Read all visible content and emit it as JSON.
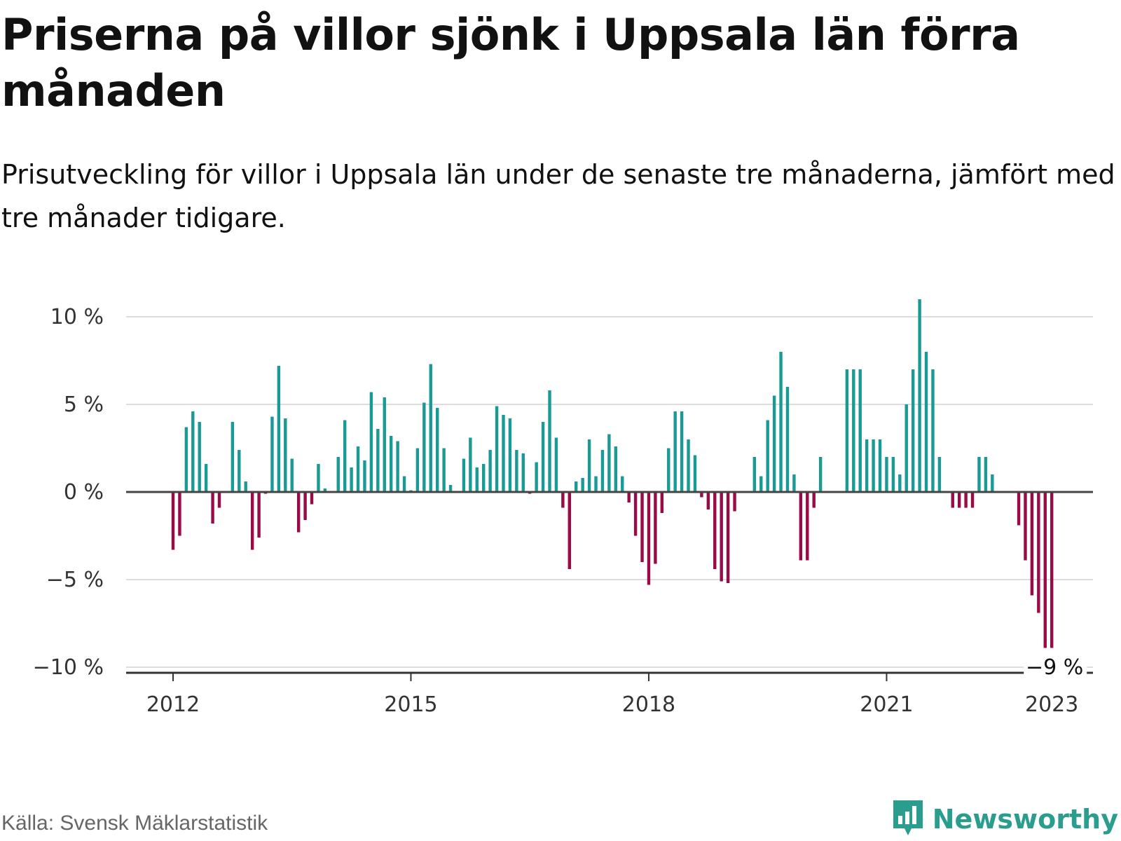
{
  "header": {
    "title": "Priserna på villor sjönk i Uppsala län förra månaden",
    "subtitle": "Prisutveckling för villor i Uppsala län under de senaste tre månaderna, jämfört med tre månader tidigare."
  },
  "footer": {
    "source": "Källa: Svensk Mäklarstatistik",
    "brand": "Newsworthy",
    "brand_icon": "newsworthy-logo-icon"
  },
  "colors": {
    "positive": "#1a9a94",
    "negative": "#990a47",
    "zero_line": "#444444",
    "grid": "#dddddd"
  },
  "chart_data": {
    "type": "bar",
    "title": "",
    "xlabel": "",
    "ylabel": "",
    "ylim": [
      -10,
      10
    ],
    "y_ticks": [
      10,
      5,
      0,
      -5,
      -10
    ],
    "y_tick_labels": [
      "10 %",
      "5 %",
      "0 %",
      "−5 %",
      "−10 %"
    ],
    "x_tick_labels": [
      {
        "label": "2012",
        "index": 0
      },
      {
        "label": "2015",
        "index": 36
      },
      {
        "label": "2018",
        "index": 72
      },
      {
        "label": "2021",
        "index": 108
      },
      {
        "label": "2023",
        "index": 133
      }
    ],
    "end_label": "−9 %",
    "start": "2012-01",
    "values": [
      -3.3,
      -2.5,
      3.7,
      4.6,
      4.0,
      1.6,
      -1.8,
      -0.9,
      0,
      4.0,
      2.4,
      0.6,
      -3.3,
      -2.6,
      -0.1,
      4.3,
      7.2,
      4.2,
      1.9,
      -2.3,
      -1.6,
      -0.7,
      1.6,
      0.2,
      0,
      2.0,
      4.1,
      1.4,
      2.6,
      1.8,
      5.7,
      3.6,
      5.4,
      3.2,
      2.9,
      0.9,
      0.1,
      2.5,
      5.1,
      7.3,
      4.8,
      2.5,
      0.4,
      0,
      1.9,
      3.1,
      1.4,
      1.6,
      2.4,
      4.9,
      4.4,
      4.2,
      2.4,
      2.2,
      -0.1,
      1.7,
      4.0,
      5.8,
      3.1,
      -0.9,
      -4.4,
      0.6,
      0.8,
      3.0,
      0.9,
      2.4,
      3.3,
      2.6,
      0.9,
      -0.6,
      -2.5,
      -4.0,
      -5.3,
      -4.1,
      -1.2,
      2.5,
      4.6,
      4.6,
      3.0,
      2.1,
      -0.3,
      -1.0,
      -4.4,
      -5.1,
      -5.2,
      -1.1,
      0,
      0,
      2.0,
      0.9,
      4.1,
      5.5,
      8.0,
      6.0,
      1.0,
      -3.9,
      -3.9,
      -0.9,
      2.0,
      0,
      0,
      0,
      7.0,
      7.0,
      7.0,
      3.0,
      3.0,
      3.0,
      2.0,
      2.0,
      1.0,
      5.0,
      7.0,
      11.0,
      8.0,
      7.0,
      2.0,
      0,
      -0.9,
      -0.9,
      -0.9,
      -0.9,
      2.0,
      2.0,
      1.0,
      0,
      0,
      0,
      -1.9,
      -3.9,
      -5.9,
      -6.9,
      -8.9,
      -8.9
    ]
  }
}
